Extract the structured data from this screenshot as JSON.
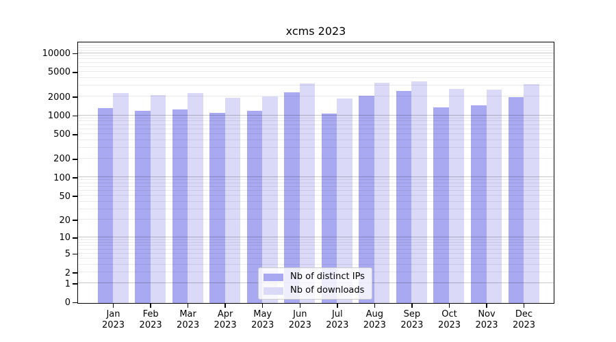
{
  "chart_data": {
    "type": "bar",
    "title": "xcms 2023",
    "categories": [
      {
        "month": "Jan",
        "year": "2023"
      },
      {
        "month": "Feb",
        "year": "2023"
      },
      {
        "month": "Mar",
        "year": "2023"
      },
      {
        "month": "Apr",
        "year": "2023"
      },
      {
        "month": "May",
        "year": "2023"
      },
      {
        "month": "Jun",
        "year": "2023"
      },
      {
        "month": "Jul",
        "year": "2023"
      },
      {
        "month": "Aug",
        "year": "2023"
      },
      {
        "month": "Sep",
        "year": "2023"
      },
      {
        "month": "Oct",
        "year": "2023"
      },
      {
        "month": "Nov",
        "year": "2023"
      },
      {
        "month": "Dec",
        "year": "2023"
      }
    ],
    "series": [
      {
        "name": "Nb of distinct IPs",
        "color": "#a9a9f1",
        "values": [
          1350,
          1240,
          1300,
          1150,
          1220,
          2400,
          1110,
          2130,
          2550,
          1400,
          1500,
          2010
        ]
      },
      {
        "name": "Nb of downloads",
        "color": "#dadaf8",
        "values": [
          2350,
          2180,
          2380,
          1980,
          2080,
          3340,
          1950,
          3480,
          3650,
          2780,
          2680,
          3310
        ]
      }
    ],
    "yticks": [
      0,
      1,
      2,
      5,
      10,
      20,
      50,
      100,
      200,
      500,
      1000,
      2000,
      5000,
      10000
    ],
    "yscale": "log1p",
    "ylim": [
      0,
      15000
    ],
    "grid": true,
    "legend_position": "lower center",
    "colors": {
      "grid_major": "rgba(0,0,0,0.22)",
      "grid_minor": "rgba(0,0,0,0.08)",
      "axis": "#000000"
    }
  }
}
